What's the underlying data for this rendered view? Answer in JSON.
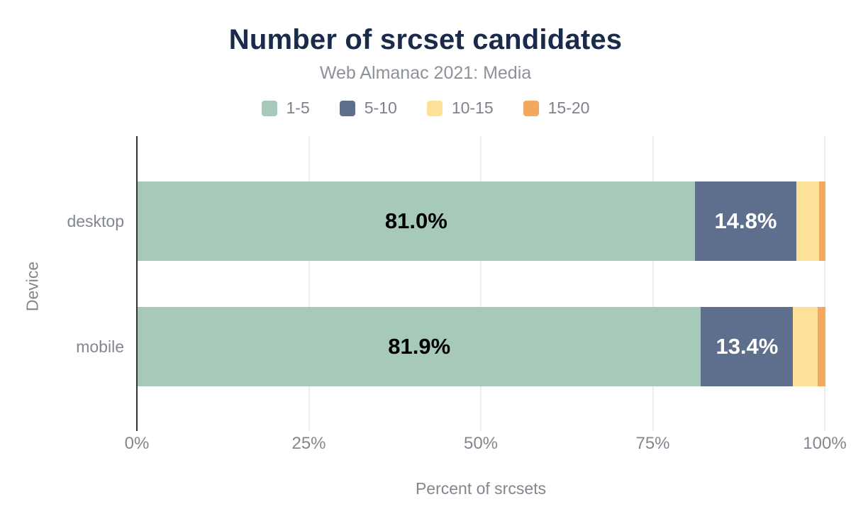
{
  "colors": {
    "title_text": "#1a2b49",
    "subtitle_text": "#8d9198",
    "axis_text": "#81868f",
    "axis_line": "#333333",
    "gridline": "#ededed",
    "background": "#ffffff"
  },
  "chart_data": {
    "type": "bar",
    "orientation": "horizontal",
    "stacked": true,
    "title": "Number of srcset candidates",
    "subtitle": "Web Almanac 2021: Media",
    "xlabel": "Percent of srcsets",
    "ylabel": "Device",
    "categories": [
      "desktop",
      "mobile"
    ],
    "series": [
      {
        "name": "1-5",
        "color": "#a7c9ba",
        "values": [
          81.0,
          81.9
        ],
        "labels": [
          "81.0%",
          "81.9%"
        ],
        "label_color": "#000000"
      },
      {
        "name": "5-10",
        "color": "#5d6f8d",
        "values": [
          14.8,
          13.4
        ],
        "labels": [
          "14.8%",
          "13.4%"
        ],
        "label_color": "#ffffff"
      },
      {
        "name": "10-15",
        "color": "#fde199",
        "values": [
          3.3,
          3.6
        ],
        "labels": [
          null,
          null
        ],
        "label_color": "#000000"
      },
      {
        "name": "15-20",
        "color": "#f4a85e",
        "values": [
          0.9,
          1.1
        ],
        "labels": [
          null,
          null
        ],
        "label_color": "#000000"
      }
    ],
    "xlim": [
      0,
      100
    ],
    "x_tick_labels": [
      "0%",
      "25%",
      "50%",
      "75%",
      "100%"
    ],
    "grid": true,
    "legend_position": "top"
  }
}
